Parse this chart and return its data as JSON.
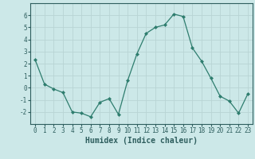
{
  "x": [
    0,
    1,
    2,
    3,
    4,
    5,
    6,
    7,
    8,
    9,
    10,
    11,
    12,
    13,
    14,
    15,
    16,
    17,
    18,
    19,
    20,
    21,
    22,
    23
  ],
  "y": [
    2.3,
    0.3,
    -0.1,
    -0.4,
    -2.0,
    -2.1,
    -2.4,
    -1.2,
    -0.9,
    -2.2,
    0.6,
    2.8,
    4.5,
    5.0,
    5.2,
    6.1,
    5.9,
    3.3,
    2.2,
    0.8,
    -0.7,
    -1.1,
    -2.1,
    -0.5
  ],
  "line_color": "#2e7d6e",
  "marker": "D",
  "marker_size": 2.0,
  "background_color": "#cce8e8",
  "grid_color": "#b8d4d4",
  "xlabel": "Humidex (Indice chaleur)",
  "xlim": [
    -0.5,
    23.5
  ],
  "ylim": [
    -3.0,
    7.0
  ],
  "yticks": [
    -2,
    -1,
    0,
    1,
    2,
    3,
    4,
    5,
    6
  ],
  "xticks": [
    0,
    1,
    2,
    3,
    4,
    5,
    6,
    7,
    8,
    9,
    10,
    11,
    12,
    13,
    14,
    15,
    16,
    17,
    18,
    19,
    20,
    21,
    22,
    23
  ],
  "tick_fontsize": 5.5,
  "xlabel_fontsize": 7.0,
  "spine_color": "#2e5e5e",
  "tick_color": "#2e5e5e"
}
